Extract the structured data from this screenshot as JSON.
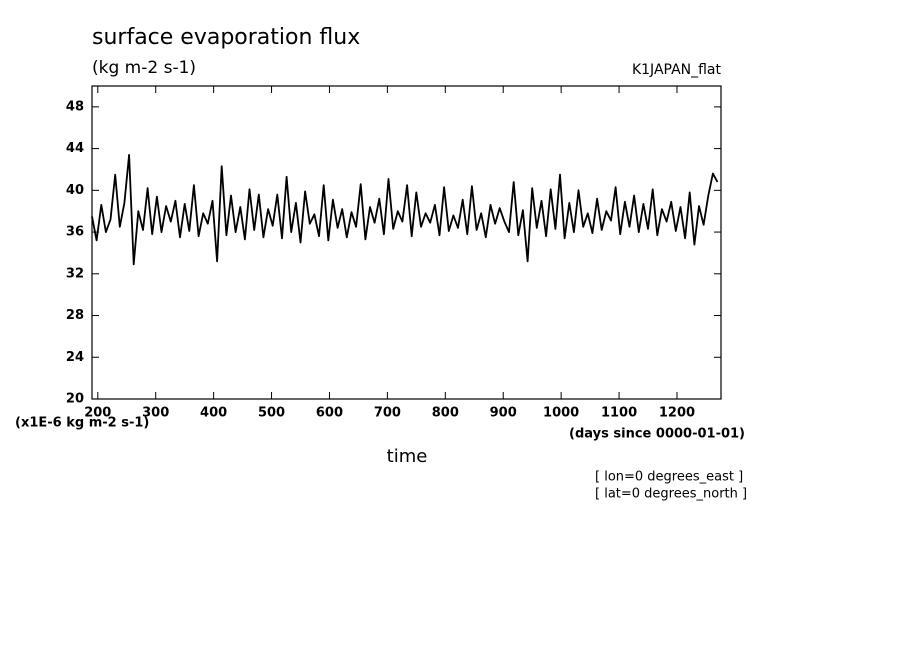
{
  "chart_data": {
    "type": "line",
    "title": "surface evaporation flux",
    "subtitle": "(kg m-2 s-1)",
    "dataset": "K1JAPAN_flat",
    "y_unit": "(x1E-6 kg m-2 s-1)",
    "x_unit": "(days since 0000-01-01)",
    "x_label": "time",
    "notes": [
      "[ lon=0 degrees_east ]",
      "[ lat=0 degrees_north ]"
    ],
    "xlim": [
      190,
      1276
    ],
    "ylim": [
      20,
      50
    ],
    "xticks": [
      200,
      300,
      400,
      500,
      600,
      700,
      800,
      900,
      1000,
      1100,
      1200
    ],
    "yticks": [
      20,
      24,
      28,
      32,
      36,
      40,
      44,
      48
    ],
    "color": "#000000",
    "x": [
      190,
      198,
      206,
      214,
      222,
      230,
      238,
      246,
      254,
      262,
      270,
      278,
      286,
      294,
      302,
      310,
      318,
      326,
      334,
      342,
      350,
      358,
      366,
      374,
      382,
      390,
      398,
      406,
      414,
      422,
      430,
      438,
      446,
      454,
      462,
      470,
      478,
      486,
      494,
      502,
      510,
      518,
      526,
      534,
      542,
      550,
      558,
      566,
      574,
      582,
      590,
      598,
      606,
      614,
      622,
      630,
      638,
      646,
      654,
      662,
      670,
      678,
      686,
      694,
      702,
      710,
      718,
      726,
      734,
      742,
      750,
      758,
      766,
      774,
      782,
      790,
      798,
      806,
      814,
      822,
      830,
      838,
      846,
      854,
      862,
      870,
      878,
      886,
      894,
      902,
      910,
      918,
      926,
      934,
      942,
      950,
      958,
      966,
      974,
      982,
      990,
      998,
      1006,
      1014,
      1022,
      1030,
      1038,
      1046,
      1054,
      1062,
      1070,
      1078,
      1086,
      1094,
      1102,
      1110,
      1118,
      1126,
      1134,
      1142,
      1150,
      1158,
      1166,
      1174,
      1182,
      1190,
      1198,
      1206,
      1214,
      1222,
      1230,
      1238,
      1246,
      1254,
      1262,
      1270
    ],
    "values": [
      37.5,
      35.2,
      38.6,
      36.0,
      37.2,
      41.5,
      36.5,
      38.8,
      43.4,
      32.9,
      38.0,
      36.2,
      40.2,
      35.8,
      39.4,
      36.0,
      38.5,
      37.0,
      39.0,
      35.5,
      38.7,
      36.1,
      40.5,
      35.6,
      37.8,
      36.8,
      39.0,
      33.2,
      42.3,
      35.7,
      39.5,
      36.0,
      38.4,
      35.3,
      40.1,
      36.2,
      39.6,
      35.5,
      38.2,
      36.6,
      39.6,
      35.4,
      41.3,
      36.0,
      38.8,
      35.0,
      39.9,
      36.8,
      37.7,
      35.6,
      40.5,
      35.2,
      39.1,
      36.4,
      38.2,
      35.5,
      37.9,
      36.5,
      40.6,
      35.3,
      38.4,
      36.9,
      39.2,
      35.8,
      41.1,
      36.3,
      38.0,
      37.0,
      40.5,
      35.6,
      39.8,
      36.5,
      37.8,
      36.9,
      38.6,
      35.7,
      40.3,
      36.1,
      37.6,
      36.4,
      39.1,
      35.8,
      40.4,
      36.2,
      37.8,
      35.5,
      38.6,
      36.8,
      38.3,
      37.0,
      36.0,
      40.8,
      35.7,
      38.1,
      33.2,
      40.2,
      36.4,
      39.0,
      35.6,
      40.1,
      36.3,
      41.5,
      35.4,
      38.8,
      36.0,
      40.0,
      36.5,
      37.8,
      35.9,
      39.2,
      36.2,
      38.0,
      37.1,
      40.3,
      35.8,
      38.9,
      36.5,
      39.5,
      36.0,
      38.7,
      36.3,
      40.1,
      35.7,
      38.2,
      37.0,
      38.9,
      36.1,
      38.4,
      35.4,
      39.8,
      34.8,
      38.5,
      36.7,
      39.5,
      41.6,
      40.8
    ]
  }
}
